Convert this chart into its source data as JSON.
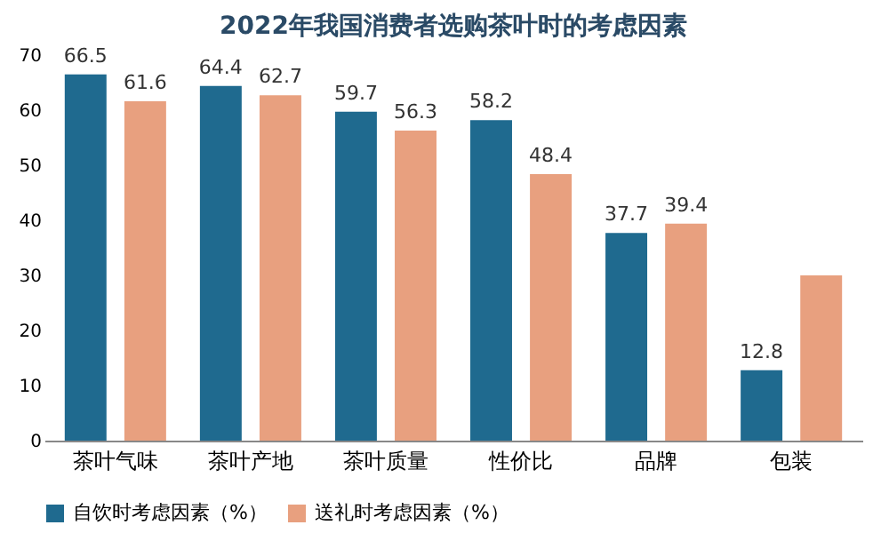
{
  "chart_data": {
    "type": "bar",
    "title": "2022年我国消费者选购茶叶时的考虑因素",
    "categories": [
      "茶叶气味",
      "茶叶产地",
      "茶叶质量",
      "性价比",
      "品牌",
      "包装"
    ],
    "series": [
      {
        "name": "自饮时考虑因素（%）",
        "color": "#1f6a8f",
        "values": [
          66.5,
          64.4,
          59.7,
          58.2,
          37.7,
          12.8
        ],
        "value_labels": [
          "66.5",
          "64.4",
          "59.7",
          "58.2",
          "37.7",
          "12.8"
        ]
      },
      {
        "name": "送礼时考虑因素（%）",
        "color": "#e8a07f",
        "values": [
          61.6,
          62.7,
          56.3,
          48.4,
          39.4,
          30
        ],
        "value_labels": [
          "61.6",
          "62.7",
          "56.3",
          "48.4",
          "39.4",
          null
        ]
      }
    ],
    "ylim": [
      0,
      70
    ],
    "yticks": [
      0,
      10,
      20,
      30,
      40,
      50,
      60,
      70
    ],
    "grid": false,
    "legend": "bottom"
  }
}
